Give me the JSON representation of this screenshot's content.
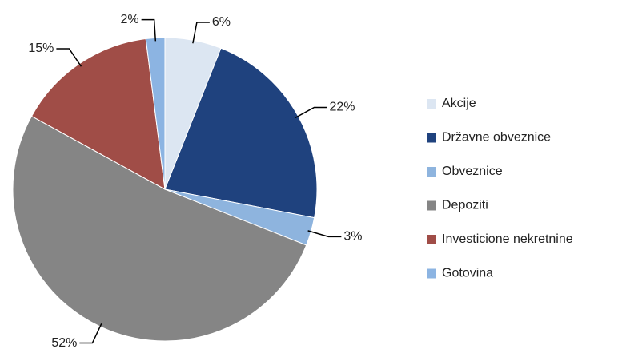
{
  "chart_data": {
    "type": "pie",
    "categories": [
      "Akcije",
      "Državne obveznice",
      "Obveznice",
      "Depoziti",
      "Investicione nekretnine",
      "Gotovina"
    ],
    "values": [
      6,
      22,
      3,
      52,
      15,
      2
    ],
    "value_labels": [
      "6%",
      "22%",
      "3%",
      "52%",
      "15%",
      "2%"
    ],
    "colors": [
      "#dce6f2",
      "#1f427e",
      "#8eb4de",
      "#858585",
      "#a04d47",
      "#8cb4e2"
    ],
    "legend": "right"
  }
}
